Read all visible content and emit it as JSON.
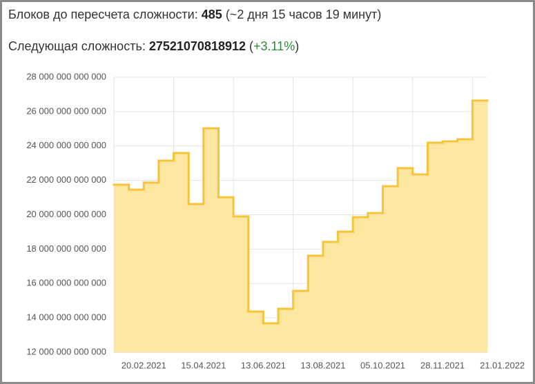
{
  "header": {
    "blocks_label": "Блоков до пересчета сложности:",
    "blocks": 485,
    "blocks_eta": "(~2 дня 15 часов 19 минут)",
    "next_label": "Следующая сложность:",
    "next_difficulty": 27521070818912,
    "paren_open": "(",
    "change": "+3.11%",
    "paren_close": ")"
  },
  "chart_data": {
    "type": "step-area",
    "color": "#f7c338",
    "fill": "#fde6a0",
    "grid": true,
    "values": [
      21750000000000,
      21460000000000,
      21870000000000,
      23150000000000,
      23590000000000,
      20620000000000,
      25030000000000,
      21020000000000,
      19900000000000,
      14370000000000,
      13690000000000,
      14530000000000,
      15570000000000,
      17620000000000,
      18420000000000,
      19020000000000,
      19860000000000,
      20100000000000,
      21660000000000,
      22710000000000,
      22350000000000,
      24190000000000,
      24270000000000,
      24390000000000,
      26640000000000
    ],
    "xlabels": [
      "20.02.2021",
      "15.04.2021",
      "13.06.2021",
      "13.08.2021",
      "05.10.2021",
      "28.11.2021",
      "21.01.2022"
    ],
    "ylim": [
      12000000000000,
      28000000000000
    ],
    "yticks": [
      {
        "value": 12000000000000,
        "label": "12 000 000 000 000"
      },
      {
        "value": 14000000000000,
        "label": "14 000 000 000 000"
      },
      {
        "value": 16000000000000,
        "label": "16 000 000 000 000"
      },
      {
        "value": 18000000000000,
        "label": "18 000 000 000 000"
      },
      {
        "value": 20000000000000,
        "label": "20 000 000 000 000"
      },
      {
        "value": 22000000000000,
        "label": "22 000 000 000 000"
      },
      {
        "value": 24000000000000,
        "label": "24 000 000 000 000"
      },
      {
        "value": 26000000000000,
        "label": "26 000 000 000 000"
      },
      {
        "value": 28000000000000,
        "label": "28 000 000 000 000"
      }
    ]
  }
}
